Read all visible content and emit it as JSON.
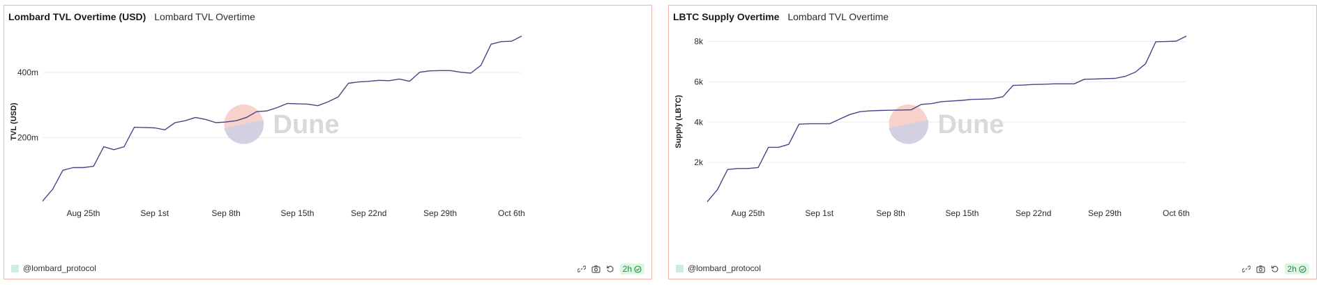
{
  "charts": [
    {
      "id": "left",
      "title": "Lombard TVL Overtime (USD)",
      "subtitle": "Lombard TVL Overtime",
      "footer": "@lombard_protocol",
      "badge": "2h",
      "watermark": "Dune",
      "colors": {
        "line": "#4a4285",
        "grid": "#ececec",
        "border": "#f3b4a8"
      }
    },
    {
      "id": "right",
      "title": "LBTC Supply Overtime",
      "subtitle": "Lombard TVL Overtime",
      "footer": "@lombard_protocol",
      "badge": "2h",
      "watermark": "Dune",
      "colors": {
        "line": "#4a4285",
        "grid": "#ececec",
        "border": "#f3b4a8"
      }
    }
  ],
  "chart_data": [
    {
      "type": "line",
      "title": "Lombard TVL Overtime (USD)",
      "ylabel": "TVL (USD)",
      "xlabel": "",
      "x_ticks": [
        "Aug 25th",
        "Sep 1st",
        "Sep 8th",
        "Sep 15th",
        "Sep 22nd",
        "Sep 29th",
        "Oct 6th"
      ],
      "y_ticks": [
        {
          "value": 200,
          "label": "200m"
        },
        {
          "value": 400,
          "label": "400m"
        }
      ],
      "ylim": [
        0,
        520
      ],
      "x_start": "2024-08-21",
      "x": [
        "2024-08-21",
        "2024-08-22",
        "2024-08-23",
        "2024-08-24",
        "2024-08-25",
        "2024-08-26",
        "2024-08-27",
        "2024-08-28",
        "2024-08-29",
        "2024-08-30",
        "2024-08-31",
        "2024-09-01",
        "2024-09-02",
        "2024-09-03",
        "2024-09-04",
        "2024-09-05",
        "2024-09-06",
        "2024-09-07",
        "2024-09-08",
        "2024-09-09",
        "2024-09-10",
        "2024-09-11",
        "2024-09-12",
        "2024-09-13",
        "2024-09-14",
        "2024-09-15",
        "2024-09-16",
        "2024-09-17",
        "2024-09-18",
        "2024-09-19",
        "2024-09-20",
        "2024-09-21",
        "2024-09-22",
        "2024-09-23",
        "2024-09-24",
        "2024-09-25",
        "2024-09-26",
        "2024-09-27",
        "2024-09-28",
        "2024-09-29",
        "2024-09-30",
        "2024-10-01",
        "2024-10-02",
        "2024-10-03",
        "2024-10-04",
        "2024-10-05",
        "2024-10-06",
        "2024-10-07"
      ],
      "series": [
        {
          "values": [
            5,
            42,
            100,
            108,
            108,
            112,
            172,
            163,
            172,
            232,
            231,
            230,
            224,
            246,
            252,
            262,
            256,
            246,
            248,
            252,
            262,
            280,
            282,
            292,
            305,
            304,
            303,
            298,
            310,
            325,
            367,
            371,
            373,
            376,
            375,
            380,
            373,
            401,
            405,
            406,
            406,
            401,
            398,
            422,
            487,
            495,
            496,
            512
          ]
        }
      ],
      "grid": true,
      "legend": "none"
    },
    {
      "type": "line",
      "title": "LBTC Supply Overtime",
      "ylabel": "Supply (LBTC)",
      "xlabel": "",
      "x_ticks": [
        "Aug 25th",
        "Sep 1st",
        "Sep 8th",
        "Sep 15th",
        "Sep 22nd",
        "Sep 29th",
        "Oct 6th"
      ],
      "y_ticks": [
        {
          "value": 2000,
          "label": "2k"
        },
        {
          "value": 4000,
          "label": "4k"
        },
        {
          "value": 6000,
          "label": "6k"
        },
        {
          "value": 8000,
          "label": "8k"
        }
      ],
      "ylim": [
        0,
        8400
      ],
      "x_start": "2024-08-21",
      "x": [
        "2024-08-21",
        "2024-08-22",
        "2024-08-23",
        "2024-08-24",
        "2024-08-25",
        "2024-08-26",
        "2024-08-27",
        "2024-08-28",
        "2024-08-29",
        "2024-08-30",
        "2024-08-31",
        "2024-09-01",
        "2024-09-02",
        "2024-09-03",
        "2024-09-04",
        "2024-09-05",
        "2024-09-06",
        "2024-09-07",
        "2024-09-08",
        "2024-09-09",
        "2024-09-10",
        "2024-09-11",
        "2024-09-12",
        "2024-09-13",
        "2024-09-14",
        "2024-09-15",
        "2024-09-16",
        "2024-09-17",
        "2024-09-18",
        "2024-09-19",
        "2024-09-20",
        "2024-09-21",
        "2024-09-22",
        "2024-09-23",
        "2024-09-24",
        "2024-09-25",
        "2024-09-26",
        "2024-09-27",
        "2024-09-28",
        "2024-09-29",
        "2024-09-30",
        "2024-10-01",
        "2024-10-02",
        "2024-10-03",
        "2024-10-04",
        "2024-10-05",
        "2024-10-06",
        "2024-10-07"
      ],
      "series": [
        {
          "values": [
            50,
            650,
            1650,
            1700,
            1700,
            1750,
            2750,
            2750,
            2900,
            3900,
            3920,
            3920,
            3920,
            4150,
            4380,
            4520,
            4560,
            4580,
            4590,
            4600,
            4610,
            4880,
            4920,
            5020,
            5050,
            5080,
            5130,
            5140,
            5160,
            5260,
            5820,
            5840,
            5870,
            5880,
            5900,
            5900,
            5900,
            6130,
            6140,
            6160,
            6170,
            6270,
            6480,
            6900,
            7990,
            8000,
            8020,
            8270
          ]
        }
      ],
      "grid": true,
      "legend": "none"
    }
  ]
}
